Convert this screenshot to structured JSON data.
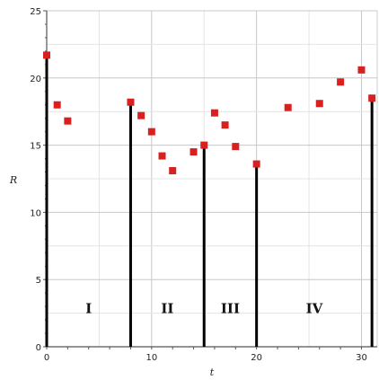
{
  "chart_data": {
    "type": "scatter",
    "title": "",
    "xlabel": "t",
    "ylabel": "R",
    "xlim": [
      0,
      31.5
    ],
    "ylim": [
      0,
      25
    ],
    "x_ticks": [
      0,
      10,
      20,
      30
    ],
    "y_ticks": [
      0,
      5,
      10,
      15,
      20,
      25
    ],
    "grid": true,
    "marker_color": "#d92020",
    "line_color": "#000000",
    "series": [
      {
        "points": [
          {
            "x": 0,
            "y": 21.7
          },
          {
            "x": 1,
            "y": 18.0
          },
          {
            "x": 2,
            "y": 16.8
          },
          {
            "x": 8,
            "y": 18.2
          },
          {
            "x": 9,
            "y": 17.2
          },
          {
            "x": 10,
            "y": 16.0
          },
          {
            "x": 11,
            "y": 14.2
          },
          {
            "x": 12,
            "y": 13.1
          },
          {
            "x": 14,
            "y": 14.5
          },
          {
            "x": 15,
            "y": 15.0
          },
          {
            "x": 16,
            "y": 17.4
          },
          {
            "x": 17,
            "y": 16.5
          },
          {
            "x": 18,
            "y": 14.9
          },
          {
            "x": 20,
            "y": 13.6
          },
          {
            "x": 23,
            "y": 17.8
          },
          {
            "x": 26,
            "y": 18.1
          },
          {
            "x": 28,
            "y": 19.7
          },
          {
            "x": 30,
            "y": 20.6
          },
          {
            "x": 31,
            "y": 18.5
          }
        ]
      }
    ],
    "vertical_lines": [
      {
        "x": 0,
        "y": 21.7
      },
      {
        "x": 8,
        "y": 18.2
      },
      {
        "x": 15,
        "y": 15.0
      },
      {
        "x": 20,
        "y": 13.6
      },
      {
        "x": 31,
        "y": 18.5
      }
    ],
    "regions": [
      {
        "label": "I",
        "x": 4,
        "y": 2.5
      },
      {
        "label": "II",
        "x": 11.5,
        "y": 2.5
      },
      {
        "label": "III",
        "x": 17.5,
        "y": 2.5
      },
      {
        "label": "IV",
        "x": 25.5,
        "y": 2.5
      }
    ]
  }
}
